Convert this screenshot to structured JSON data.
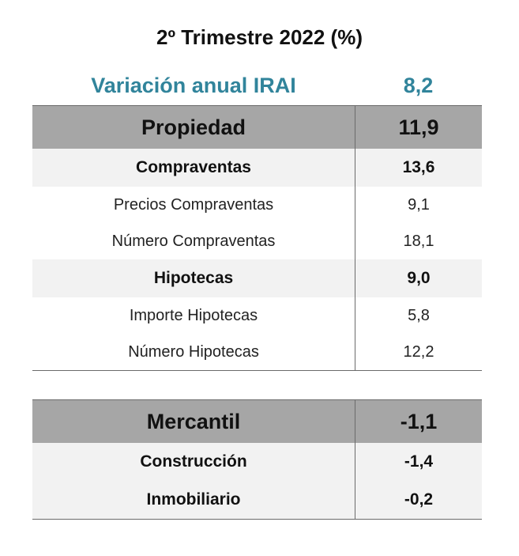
{
  "title": "2º Trimestre 2022 (%)",
  "accent_color": "#31849b",
  "irai": {
    "label": "Variación anual IRAI",
    "value": "8,2"
  },
  "propiedad": {
    "header": {
      "label": "Propiedad",
      "value": "11,9"
    },
    "rows": [
      {
        "type": "sub",
        "label": "Compraventas",
        "value": "13,6"
      },
      {
        "type": "item",
        "label": "Precios Compraventas",
        "value": "9,1"
      },
      {
        "type": "item",
        "label": "Número Compraventas",
        "value": "18,1"
      },
      {
        "type": "sub",
        "label": "Hipotecas",
        "value": "9,0"
      },
      {
        "type": "item",
        "label": "Importe Hipotecas",
        "value": "5,8"
      },
      {
        "type": "item",
        "label": "Número Hipotecas",
        "value": "12,2"
      }
    ]
  },
  "mercantil": {
    "header": {
      "label": "Mercantil",
      "value": "-1,1"
    },
    "rows": [
      {
        "type": "sub",
        "label": "Construcción",
        "value": "-1,4"
      },
      {
        "type": "sub",
        "label": "Inmobiliario",
        "value": "-0,2"
      }
    ]
  }
}
